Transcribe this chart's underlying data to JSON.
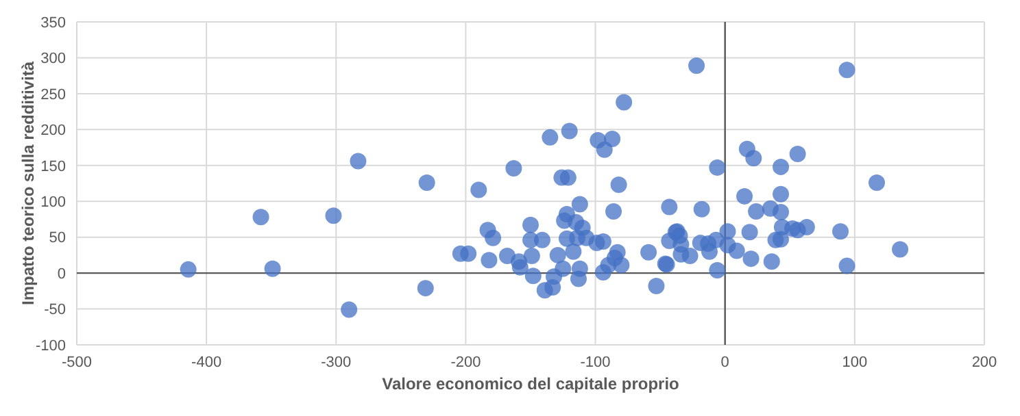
{
  "chart_data": {
    "type": "scatter",
    "xlabel": "Valore economico del capitale proprio",
    "ylabel": "Impatto teorico sulla redditività",
    "x": [
      -414,
      -358,
      -349,
      -302,
      -283,
      -230,
      -231,
      -290,
      -204,
      -198,
      -190,
      -182,
      -183,
      -179,
      -163,
      -168,
      -159,
      -158,
      -150,
      -150,
      -141,
      -149,
      -148,
      -135,
      -120,
      -126,
      -121,
      -112,
      -122,
      -124,
      -115,
      -110,
      -122,
      -114,
      -107,
      -129,
      -117,
      -125,
      -112,
      -113,
      -132,
      -139,
      -133,
      -98,
      -87,
      -93,
      -82,
      -86,
      -99,
      -94,
      -94,
      -90,
      -85,
      -83,
      -80,
      -78,
      -59,
      -53,
      -45,
      -43,
      -43,
      -37,
      -35,
      -34,
      -27,
      -34,
      -18,
      -19,
      -22,
      94,
      17,
      22,
      56,
      43,
      -6,
      117,
      15,
      43,
      24,
      35,
      43,
      44,
      52,
      56,
      63,
      89,
      19,
      2,
      39,
      43,
      135,
      94,
      36,
      20,
      9,
      2,
      -7,
      -13,
      -12,
      -6,
      -38,
      -46
    ],
    "values": [
      5,
      78,
      6,
      80,
      156,
      126,
      -21,
      -51,
      27,
      27,
      116,
      18,
      60,
      49,
      146,
      24,
      16,
      8,
      67,
      46,
      46,
      24,
      -4,
      189,
      198,
      133,
      133,
      96,
      82,
      73,
      71,
      63,
      48,
      49,
      49,
      25,
      30,
      6,
      6,
      -8,
      -5,
      -24,
      -20,
      185,
      187,
      172,
      123,
      86,
      42,
      44,
      1,
      11,
      21,
      29,
      11,
      238,
      29,
      -18,
      12,
      45,
      92,
      58,
      52,
      40,
      24,
      26,
      89,
      42,
      289,
      283,
      173,
      160,
      166,
      148,
      147,
      126,
      107,
      110,
      86,
      90,
      85,
      64,
      62,
      60,
      64,
      58,
      57,
      58,
      46,
      47,
      33,
      10,
      16,
      20,
      31,
      39,
      46,
      41,
      30,
      4,
      57,
      13
    ],
    "color": "#4472c4",
    "marker": "circle",
    "xlim": [
      -500,
      200
    ],
    "xticks": [
      -500,
      -400,
      -300,
      -200,
      -100,
      0,
      100,
      200
    ],
    "ylim": [
      -100,
      350
    ],
    "yticks": [
      -100,
      -50,
      0,
      50,
      100,
      150,
      200,
      250,
      300,
      350
    ],
    "grid": true
  }
}
